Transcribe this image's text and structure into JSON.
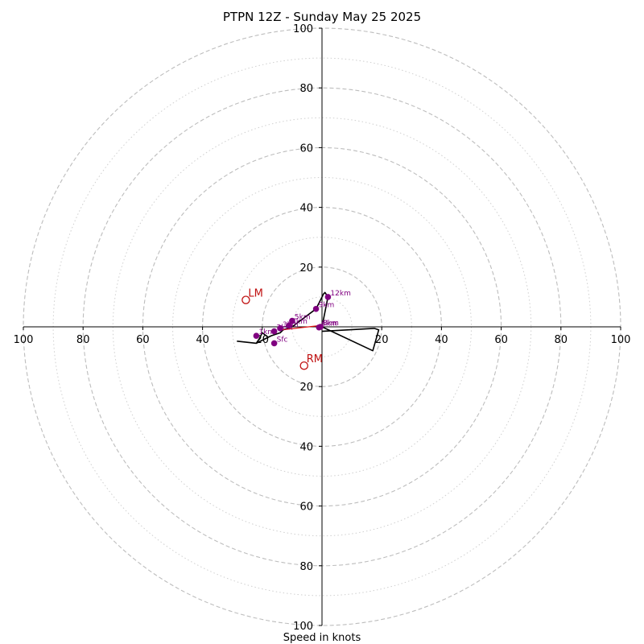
{
  "chart_data": {
    "type": "hodograph",
    "title": "PTPN 12Z - Sunday May 25 2025",
    "xlabel": "Speed in knots",
    "ring_major": [
      20,
      40,
      60,
      80,
      100
    ],
    "ring_minor": [
      10,
      30,
      50,
      70,
      90
    ],
    "xticks": [
      {
        "value": -100,
        "label": "100"
      },
      {
        "value": -80,
        "label": "80"
      },
      {
        "value": -60,
        "label": "60"
      },
      {
        "value": -40,
        "label": "40"
      },
      {
        "value": -20,
        "label": "20"
      },
      {
        "value": 20,
        "label": "20"
      },
      {
        "value": 40,
        "label": "40"
      },
      {
        "value": 60,
        "label": "60"
      },
      {
        "value": 80,
        "label": "80"
      },
      {
        "value": 100,
        "label": "100"
      }
    ],
    "yticks": [
      {
        "value": 100,
        "label": "100"
      },
      {
        "value": 80,
        "label": "80"
      },
      {
        "value": 60,
        "label": "60"
      },
      {
        "value": 40,
        "label": "40"
      },
      {
        "value": 20,
        "label": "20"
      },
      {
        "value": -20,
        "label": "20"
      },
      {
        "value": -40,
        "label": "40"
      },
      {
        "value": -60,
        "label": "60"
      },
      {
        "value": -80,
        "label": "80"
      },
      {
        "value": -100,
        "label": "100"
      }
    ],
    "xlim": [
      -100,
      100
    ],
    "ylim": [
      -100,
      100
    ],
    "wind_profile": {
      "u": [
        -28.5,
        -22,
        -18,
        -20,
        -21,
        -22,
        -17,
        -14,
        -13,
        -10,
        -8,
        -6,
        -2,
        0.5,
        1,
        2,
        0,
        17,
        19,
        17.5,
        0
      ],
      "v": [
        -4.8,
        -5.5,
        -3.5,
        -2,
        -4,
        -5.5,
        -3,
        -2,
        -1,
        0,
        1.5,
        3,
        6,
        11,
        11.5,
        10,
        0,
        -8,
        -1,
        -0.5,
        -1.5
      ]
    },
    "height_markers": [
      {
        "label": "Sfc",
        "u": -16,
        "v": -5.5
      },
      {
        "label": "1km",
        "u": -22,
        "v": -3
      },
      {
        "label": "2km",
        "u": -16,
        "v": -1.5
      },
      {
        "label": "3km",
        "u": -14,
        "v": -0.5
      },
      {
        "label": "4km",
        "u": -11,
        "v": 0.5
      },
      {
        "label": "5km",
        "u": -10,
        "v": 2
      },
      {
        "label": "9km",
        "u": -2,
        "v": 6
      },
      {
        "label": "12km",
        "u": 2,
        "v": 10
      },
      {
        "label": "8km",
        "u": -0.5,
        "v": 0
      },
      {
        "label": "6km",
        "u": -1,
        "v": -0.2
      }
    ],
    "storm_motion": [
      {
        "label": "LM",
        "u": -25.5,
        "v": 9
      },
      {
        "label": "RM",
        "u": -6,
        "v": -13
      }
    ],
    "shear_vector": {
      "u1": -13.5,
      "v1": -1,
      "u2": 0,
      "v2": 0.5
    }
  }
}
